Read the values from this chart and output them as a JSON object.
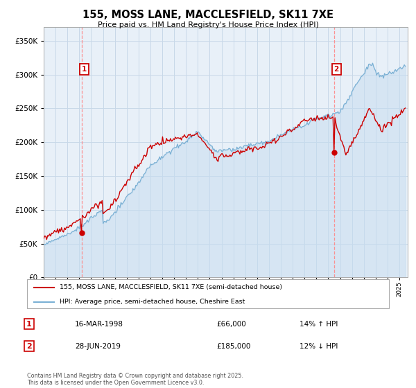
{
  "title": "155, MOSS LANE, MACCLESFIELD, SK11 7XE",
  "subtitle": "Price paid vs. HM Land Registry's House Price Index (HPI)",
  "ylim": [
    0,
    370000
  ],
  "yticks": [
    0,
    50000,
    100000,
    150000,
    200000,
    250000,
    300000,
    350000
  ],
  "year_start": 1995,
  "year_end": 2025,
  "legend_entries": [
    "155, MOSS LANE, MACCLESFIELD, SK11 7XE (semi-detached house)",
    "HPI: Average price, semi-detached house, Cheshire East"
  ],
  "legend_colors": [
    "#cc0000",
    "#7ab0d4"
  ],
  "sale1_date": "16-MAR-1998",
  "sale1_price": "£66,000",
  "sale1_hpi": "14% ↑ HPI",
  "sale1_year": 1998.21,
  "sale1_value": 66000,
  "sale2_date": "28-JUN-2019",
  "sale2_price": "£185,000",
  "sale2_hpi": "12% ↓ HPI",
  "sale2_year": 2019.49,
  "sale2_value": 185000,
  "vline_color": "#ff8888",
  "hpi_color": "#7ab0d4",
  "price_color": "#cc0000",
  "grid_color": "#c8d8e8",
  "chart_bg": "#e8f0f8",
  "background_color": "#ffffff",
  "footnote": "Contains HM Land Registry data © Crown copyright and database right 2025.\nThis data is licensed under the Open Government Licence v3.0."
}
